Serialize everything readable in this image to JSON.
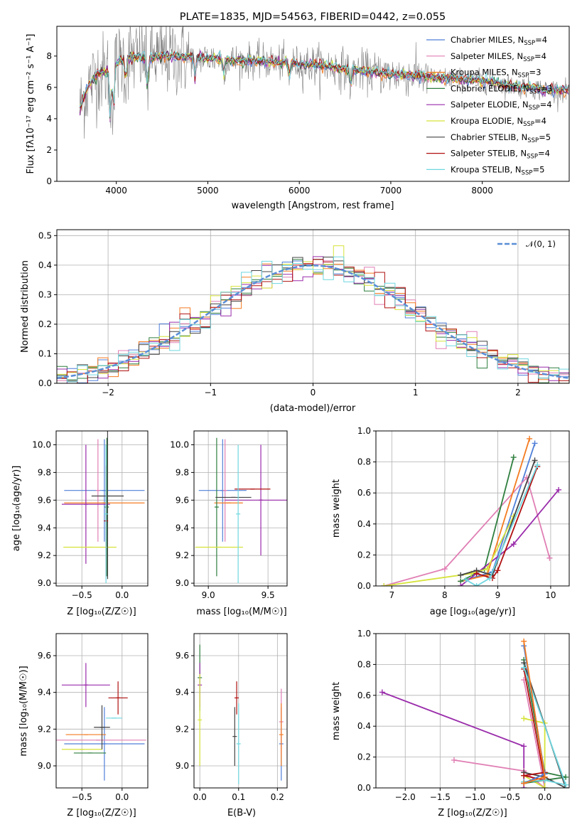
{
  "colors": {
    "Chabrier MILES": "#4f7fd8",
    "Salpeter MILES": "#e07fb4",
    "Kroupa MILES": "#f47b20",
    "Chabrier ELODIE": "#2f7f3f",
    "Salpeter ELODIE": "#9a2cab",
    "Kroupa ELODIE": "#d6e33a",
    "Chabrier STELIB": "#444444",
    "Salpeter STELIB": "#b01010",
    "Kroupa STELIB": "#6fd7e0",
    "data": "#808080",
    "normal": "#5a8ed6"
  },
  "chart_data": [
    {
      "id": "spectrum",
      "type": "line",
      "title": "PLATE=1835, MJD=54563, FIBERID=0442, z=0.055",
      "xlabel": "wavelength [Angstrom, rest frame]",
      "ylabel": "Flux [fλ10⁻¹⁷ erg cm⁻² s⁻¹ A⁻¹]",
      "xlim": [
        3350,
        8950
      ],
      "ylim": [
        0,
        9.9
      ],
      "xticks": [
        4000,
        5000,
        6000,
        7000,
        8000
      ],
      "yticks": [
        0,
        2,
        4,
        6,
        8
      ],
      "grid": false,
      "legend": "top-right",
      "legend_entries": [
        {
          "model": "Chabrier MILES",
          "label": "Chabrier MILES, N",
          "sub": "SSP",
          "tail": "=4"
        },
        {
          "model": "Salpeter MILES",
          "label": "Salpeter MILES, N",
          "sub": "SSP",
          "tail": "=4"
        },
        {
          "model": "Kroupa MILES",
          "label": "Kroupa MILES, N",
          "sub": "SSP",
          "tail": "=3"
        },
        {
          "model": "Chabrier ELODIE",
          "label": "Chabrier ELODIE, N",
          "sub": "SSP",
          "tail": "=3"
        },
        {
          "model": "Salpeter ELODIE",
          "label": "Salpeter ELODIE, N",
          "sub": "SSP",
          "tail": "=4"
        },
        {
          "model": "Kroupa ELODIE",
          "label": "Kroupa ELODIE, N",
          "sub": "SSP",
          "tail": "=4"
        },
        {
          "model": "Chabrier STELIB",
          "label": "Chabrier STELIB, N",
          "sub": "SSP",
          "tail": "=5"
        },
        {
          "model": "Salpeter STELIB",
          "label": "Salpeter STELIB, N",
          "sub": "SSP",
          "tail": "=4"
        },
        {
          "model": "Kroupa STELIB",
          "label": "Kroupa STELIB, N",
          "sub": "SSP",
          "tail": "=5"
        }
      ],
      "continuum": [
        [
          3600,
          4.6
        ],
        [
          3700,
          6.2
        ],
        [
          3800,
          6.9
        ],
        [
          3900,
          7.0
        ],
        [
          4000,
          7.5
        ],
        [
          4100,
          7.9
        ],
        [
          4300,
          7.9
        ],
        [
          4500,
          8.0
        ],
        [
          4700,
          7.95
        ],
        [
          4900,
          7.9
        ],
        [
          5100,
          7.85
        ],
        [
          5300,
          7.7
        ],
        [
          5500,
          7.7
        ],
        [
          5700,
          7.6
        ],
        [
          5900,
          7.55
        ],
        [
          6100,
          7.45
        ],
        [
          6300,
          7.35
        ],
        [
          6500,
          7.2
        ],
        [
          6700,
          7.05
        ],
        [
          6900,
          6.9
        ],
        [
          7100,
          6.8
        ],
        [
          7300,
          6.75
        ],
        [
          7500,
          6.6
        ],
        [
          7700,
          6.55
        ],
        [
          7900,
          6.45
        ],
        [
          8100,
          6.35
        ],
        [
          8300,
          6.1
        ],
        [
          8500,
          6.0
        ],
        [
          8700,
          5.85
        ],
        [
          8950,
          5.8
        ]
      ]
    },
    {
      "id": "residuals",
      "type": "histogram",
      "xlabel": "(data-model)/error",
      "ylabel": "Normed distribution",
      "xlim": [
        -2.5,
        2.5
      ],
      "ylim": [
        0,
        0.52
      ],
      "xticks": [
        -2,
        -1,
        0,
        1,
        2
      ],
      "yticks": [
        0.0,
        0.1,
        0.2,
        0.3,
        0.4,
        0.5
      ],
      "grid": true,
      "legend": "top-right",
      "legend_label": "𝒩(0, 1)",
      "bin_width": 0.1
    },
    {
      "id": "age-vs-Z",
      "type": "errorbar",
      "xlabel": "Z [log₁₀(Z/Z☉)]",
      "ylabel": "age  [log₁₀(age/yr)]",
      "xlim": [
        -0.82,
        0.32
      ],
      "ylim": [
        8.98,
        10.1
      ],
      "xticks": [
        -0.5,
        0.0
      ],
      "yticks": [
        9.0,
        9.2,
        9.4,
        9.6,
        9.8,
        10.0
      ],
      "grid": true,
      "points": [
        {
          "model": "Chabrier MILES",
          "x": -0.22,
          "xerr": 0.5,
          "y": 9.67,
          "yerr": 0.37
        },
        {
          "model": "Salpeter MILES",
          "x": -0.3,
          "xerr": 0.0,
          "y": 9.67,
          "yerr": 0.37
        },
        {
          "model": "Kroupa MILES",
          "x": -0.22,
          "xerr": 0.5,
          "y": 9.58,
          "yerr": 0.0
        },
        {
          "model": "Chabrier ELODIE",
          "x": -0.19,
          "xerr": 0.0,
          "y": 9.55,
          "yerr": 0.5
        },
        {
          "model": "Salpeter ELODIE",
          "x": -0.45,
          "xerr": 0.3,
          "y": 9.57,
          "yerr": 0.43
        },
        {
          "model": "Kroupa ELODIE",
          "x": -0.4,
          "xerr": 0.33,
          "y": 9.26,
          "yerr": 0.0
        },
        {
          "model": "Chabrier STELIB",
          "x": -0.18,
          "xerr": 0.2,
          "y": 9.63,
          "yerr": 0.6
        },
        {
          "model": "Salpeter STELIB",
          "x": -0.2,
          "xerr": 0.0,
          "y": 9.45,
          "yerr": 0.4
        },
        {
          "model": "Kroupa STELIB",
          "x": -0.2,
          "xerr": 0.0,
          "y": 9.5,
          "yerr": 0.5
        }
      ]
    },
    {
      "id": "age-vs-mass",
      "type": "errorbar",
      "xlabel": "mass [log₁₀(M/M☉)]",
      "xlim": [
        8.88,
        9.66
      ],
      "ylim": [
        8.98,
        10.1
      ],
      "xticks": [
        9.0,
        9.5
      ],
      "yticks": [
        9.0,
        9.2,
        9.4,
        9.6,
        9.8,
        10.0
      ],
      "grid": true,
      "points": [
        {
          "model": "Chabrier MILES",
          "x": 9.12,
          "xerr": 0.2,
          "y": 9.67,
          "yerr": 0.37
        },
        {
          "model": "Salpeter MILES",
          "x": 9.14,
          "xerr": 0.0,
          "y": 9.67,
          "yerr": 0.37
        },
        {
          "model": "Kroupa MILES",
          "x": 9.17,
          "xerr": 0.12,
          "y": 9.58,
          "yerr": 0.0
        },
        {
          "model": "Chabrier ELODIE",
          "x": 9.07,
          "xerr": 0.0,
          "y": 9.55,
          "yerr": 0.5
        },
        {
          "model": "Salpeter ELODIE",
          "x": 9.44,
          "xerr": 0.3,
          "y": 9.6,
          "yerr": 0.4
        },
        {
          "model": "Kroupa ELODIE",
          "x": 9.09,
          "xerr": 0.2,
          "y": 9.26,
          "yerr": 0.0
        },
        {
          "model": "Chabrier STELIB",
          "x": 9.21,
          "xerr": 0.15,
          "y": 9.62,
          "yerr": 0.0
        },
        {
          "model": "Salpeter STELIB",
          "x": 9.37,
          "xerr": 0.15,
          "y": 9.68,
          "yerr": 0.0
        },
        {
          "model": "Kroupa STELIB",
          "x": 9.25,
          "xerr": 0.0,
          "y": 9.5,
          "yerr": 0.5
        }
      ]
    },
    {
      "id": "weight-vs-age",
      "type": "line",
      "xlabel": "age  [log₁₀(age/yr)]",
      "ylabel": "mass weight",
      "xlim": [
        6.7,
        10.35
      ],
      "ylim": [
        0,
        1.0
      ],
      "xticks": [
        7,
        8,
        9,
        10
      ],
      "yticks": [
        0.0,
        0.2,
        0.4,
        0.6,
        0.8,
        1.0
      ],
      "grid": true,
      "series": [
        {
          "model": "Chabrier MILES",
          "points": [
            [
              8.3,
              0.03
            ],
            [
              8.9,
              0.09
            ],
            [
              9.7,
              0.92
            ]
          ]
        },
        {
          "model": "Salpeter MILES",
          "points": [
            [
              6.85,
              0.0
            ],
            [
              8.0,
              0.11
            ],
            [
              9.55,
              0.7
            ],
            [
              9.98,
              0.18
            ]
          ]
        },
        {
          "model": "Kroupa MILES",
          "points": [
            [
              8.3,
              0.03
            ],
            [
              8.8,
              0.07
            ],
            [
              9.6,
              0.95
            ]
          ]
        },
        {
          "model": "Chabrier ELODIE",
          "points": [
            [
              8.3,
              0.03
            ],
            [
              8.75,
              0.11
            ],
            [
              9.3,
              0.83
            ]
          ]
        },
        {
          "model": "Salpeter ELODIE",
          "points": [
            [
              8.3,
              0.0
            ],
            [
              9.3,
              0.27
            ],
            [
              10.15,
              0.62
            ]
          ]
        },
        {
          "model": "Kroupa ELODIE",
          "points": [
            [
              6.85,
              0.0
            ],
            [
              8.5,
              0.08
            ],
            [
              8.8,
              0.11
            ],
            [
              9.3,
              0.45
            ]
          ]
        },
        {
          "model": "Chabrier STELIB",
          "points": [
            [
              8.3,
              0.07
            ],
            [
              8.6,
              0.1
            ],
            [
              8.9,
              0.07
            ],
            [
              9.7,
              0.81
            ]
          ]
        },
        {
          "model": "Salpeter STELIB",
          "points": [
            [
              8.6,
              0.08
            ],
            [
              8.9,
              0.05
            ],
            [
              9.0,
              0.1
            ],
            [
              9.75,
              0.77
            ]
          ]
        },
        {
          "model": "Kroupa STELIB",
          "points": [
            [
              8.4,
              0.04
            ],
            [
              8.6,
              0.0
            ],
            [
              8.85,
              0.05
            ],
            [
              9.75,
              0.78
            ]
          ]
        }
      ]
    },
    {
      "id": "mass-vs-Z",
      "type": "errorbar",
      "xlabel": "Z [log₁₀(Z/Z☉)]",
      "ylabel": "mass [log₁₀(M/M☉)]",
      "xlim": [
        -0.82,
        0.32
      ],
      "ylim": [
        8.88,
        9.72
      ],
      "xticks": [
        -0.5,
        0.0
      ],
      "yticks": [
        9.0,
        9.2,
        9.4,
        9.6
      ],
      "grid": true,
      "points": [
        {
          "model": "Chabrier MILES",
          "x": -0.22,
          "xerr": 0.5,
          "y": 9.12,
          "yerr": 0.2
        },
        {
          "model": "Salpeter MILES",
          "x": -0.3,
          "xerr": 0.6,
          "y": 9.14,
          "yerr": 0.0
        },
        {
          "model": "Kroupa MILES",
          "x": -0.45,
          "xerr": 0.25,
          "y": 9.17,
          "yerr": 0.0
        },
        {
          "model": "Chabrier ELODIE",
          "x": -0.4,
          "xerr": 0.2,
          "y": 9.07,
          "yerr": 0.0
        },
        {
          "model": "Salpeter ELODIE",
          "x": -0.45,
          "xerr": 0.3,
          "y": 9.44,
          "yerr": 0.12
        },
        {
          "model": "Kroupa ELODIE",
          "x": -0.5,
          "xerr": 0.25,
          "y": 9.09,
          "yerr": 0.0
        },
        {
          "model": "Chabrier STELIB",
          "x": -0.25,
          "xerr": 0.1,
          "y": 9.21,
          "yerr": 0.12
        },
        {
          "model": "Salpeter STELIB",
          "x": -0.05,
          "xerr": 0.12,
          "y": 9.37,
          "yerr": 0.09
        },
        {
          "model": "Kroupa STELIB",
          "x": -0.1,
          "xerr": 0.1,
          "y": 9.26,
          "yerr": 0.0
        }
      ]
    },
    {
      "id": "mass-vs-EBV",
      "type": "errorbar",
      "xlabel": "E(B-V)",
      "xlim": [
        -0.015,
        0.225
      ],
      "ylim": [
        8.88,
        9.72
      ],
      "xticks": [
        0.0,
        0.1,
        0.2
      ],
      "yticks": [
        9.0,
        9.2,
        9.4,
        9.6
      ],
      "grid": true,
      "points": [
        {
          "model": "Chabrier MILES",
          "x": 0.21,
          "xerr": 0.0,
          "y": 9.12,
          "yerr": 0.2
        },
        {
          "model": "Salpeter MILES",
          "x": 0.21,
          "xerr": 0.0,
          "y": 9.24,
          "yerr": 0.18
        },
        {
          "model": "Kroupa MILES",
          "x": 0.21,
          "xerr": 0.0,
          "y": 9.17,
          "yerr": 0.17
        },
        {
          "model": "Chabrier ELODIE",
          "x": 0.0,
          "xerr": 0.0,
          "y": 9.48,
          "yerr": 0.18
        },
        {
          "model": "Salpeter ELODIE",
          "x": 0.0,
          "xerr": 0.0,
          "y": 9.44,
          "yerr": 0.12
        },
        {
          "model": "Kroupa ELODIE",
          "x": 0.0,
          "xerr": 0.0,
          "y": 9.25,
          "yerr": 0.25
        },
        {
          "model": "Chabrier STELIB",
          "x": 0.09,
          "xerr": 0.0,
          "y": 9.16,
          "yerr": 0.16
        },
        {
          "model": "Salpeter STELIB",
          "x": 0.095,
          "xerr": 0.0,
          "y": 9.37,
          "yerr": 0.09
        },
        {
          "model": "Kroupa STELIB",
          "x": 0.1,
          "xerr": 0.0,
          "y": 9.12,
          "yerr": 0.22
        }
      ]
    },
    {
      "id": "weight-vs-Z",
      "type": "line",
      "xlabel": "Z [log₁₀(Z/Z☉)]",
      "ylabel": "mass weight",
      "xlim": [
        -2.42,
        0.35
      ],
      "ylim": [
        0,
        1.0
      ],
      "xticks": [
        -2.0,
        -1.5,
        -1.0,
        -0.5,
        0.0
      ],
      "yticks": [
        0.0,
        0.2,
        0.4,
        0.6,
        0.8,
        1.0
      ],
      "grid": true,
      "series": [
        {
          "model": "Salpeter ELODIE",
          "points": [
            [
              -2.33,
              0.62
            ],
            [
              -0.3,
              0.27
            ],
            [
              -0.3,
              0.0
            ]
          ]
        },
        {
          "model": "Salpeter MILES",
          "points": [
            [
              -1.3,
              0.18
            ],
            [
              -0.3,
              0.11
            ],
            [
              0.0,
              0.0
            ],
            [
              -0.3,
              0.7
            ]
          ]
        },
        {
          "model": "Kroupa ELODIE",
          "points": [
            [
              -0.3,
              0.45
            ],
            [
              0.0,
              0.42
            ],
            [
              0.0,
              0.0
            ],
            [
              -0.3,
              0.08
            ]
          ]
        },
        {
          "model": "Chabrier ELODIE",
          "points": [
            [
              -0.3,
              0.83
            ],
            [
              0.0,
              0.1
            ],
            [
              0.3,
              0.07
            ],
            [
              -0.3,
              0.03
            ]
          ]
        },
        {
          "model": "Chabrier STELIB",
          "points": [
            [
              -0.3,
              0.81
            ],
            [
              0.3,
              0.0
            ],
            [
              0.0,
              0.07
            ],
            [
              -0.3,
              0.1
            ]
          ]
        },
        {
          "model": "Salpeter STELIB",
          "points": [
            [
              -0.3,
              0.77
            ],
            [
              0.0,
              0.05
            ],
            [
              -0.3,
              0.08
            ],
            [
              0.0,
              0.1
            ]
          ]
        },
        {
          "model": "Kroupa STELIB",
          "points": [
            [
              -0.3,
              0.78
            ],
            [
              0.3,
              0.02
            ],
            [
              0.0,
              0.05
            ],
            [
              -0.3,
              0.04
            ]
          ]
        },
        {
          "model": "Chabrier MILES",
          "points": [
            [
              -0.3,
              0.92
            ],
            [
              0.0,
              0.09
            ],
            [
              -0.3,
              0.03
            ]
          ]
        },
        {
          "model": "Kroupa MILES",
          "points": [
            [
              -0.3,
              0.95
            ],
            [
              0.0,
              0.07
            ],
            [
              -0.3,
              0.03
            ]
          ]
        }
      ]
    }
  ]
}
